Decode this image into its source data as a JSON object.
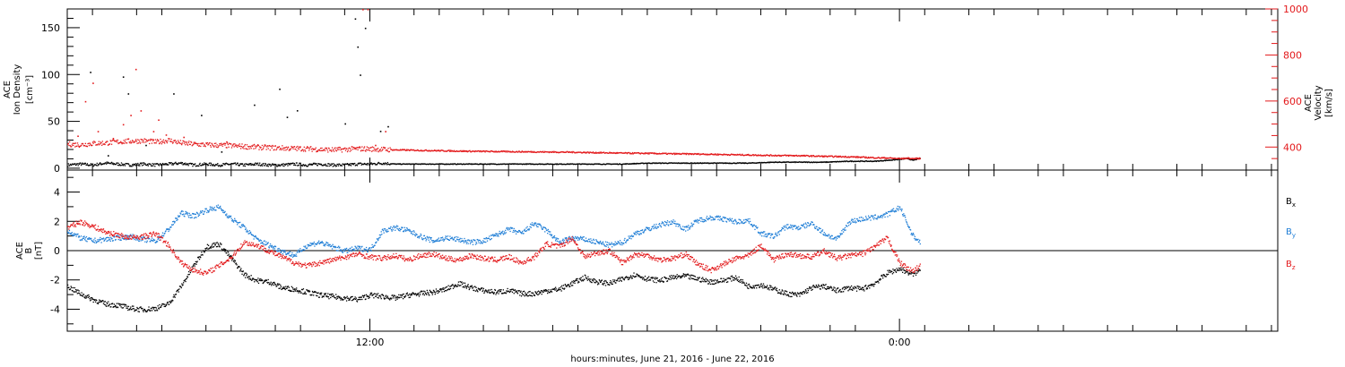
{
  "chart_data": [
    {
      "type": "scatter",
      "panel": "plasma",
      "ylabel_lines": [
        "ACE",
        "Ion Density"
      ],
      "ylabel_unit": "[cm⁻³]",
      "y2label_lines": [
        "ACE",
        "Velocity"
      ],
      "y2label_unit": "[km/s]",
      "ylim": [
        -2,
        170
      ],
      "yticks": [
        0,
        50,
        100,
        150
      ],
      "y2lim": [
        300,
        1000
      ],
      "y2ticks": [
        400,
        600,
        800,
        1000
      ],
      "x_range_hours": [
        0,
        48
      ],
      "series": [
        {
          "name": "Ion Density",
          "axis": "left",
          "color": "#000000",
          "x": [
            0.0,
            0.5,
            1.0,
            1.5,
            2.0,
            2.5,
            3.0,
            3.5,
            4.0,
            4.5,
            5.0,
            5.5,
            6.0,
            6.5,
            7.0,
            7.5,
            8.0,
            8.5,
            9.0,
            9.5,
            10.0,
            10.5,
            11.0,
            11.5,
            12.0,
            12.5,
            13.0,
            14.0,
            15.0,
            16.0,
            17.0,
            18.0,
            19.0,
            20.0,
            21.0,
            22.0,
            23.0,
            24.0,
            25.0,
            26.0,
            27.0,
            28.0,
            29.0,
            30.0,
            31.0,
            32.0,
            32.5,
            33.0,
            33.3,
            33.5,
            33.8
          ],
          "y": [
            4,
            5,
            4,
            6,
            5,
            4,
            5,
            4,
            5,
            6,
            4,
            5,
            4,
            5,
            4,
            5,
            4,
            4,
            5,
            4,
            5,
            4,
            4,
            5,
            5,
            6,
            5,
            5,
            5,
            5,
            5,
            5,
            5,
            5,
            5,
            5,
            6,
            6,
            6,
            6,
            6,
            7,
            7,
            7,
            8,
            8,
            9,
            10,
            11,
            9,
            11
          ]
        },
        {
          "name": "Ion Density spikes",
          "axis": "left",
          "color": "#000000",
          "x": [
            0.9,
            2.2,
            2.4,
            4.2,
            5.3,
            7.4,
            8.4,
            8.7,
            9.1,
            11.0,
            11.4,
            11.5,
            11.6,
            11.8,
            12.4,
            12.7,
            6.1,
            3.1,
            1.6
          ],
          "y": [
            103,
            98,
            80,
            80,
            57,
            68,
            85,
            55,
            62,
            48,
            160,
            130,
            100,
            150,
            40,
            45,
            18,
            25,
            14
          ]
        },
        {
          "name": "Velocity",
          "axis": "right",
          "color": "#e31a1c",
          "x": [
            0.0,
            0.5,
            1.0,
            1.5,
            2.0,
            2.5,
            3.0,
            3.5,
            4.0,
            4.5,
            5.0,
            5.5,
            6.0,
            6.5,
            7.0,
            7.5,
            8.0,
            8.5,
            9.0,
            9.5,
            10.0,
            10.5,
            11.0,
            11.5,
            12.0,
            12.5,
            13.0,
            14.0,
            15.0,
            16.0,
            17.0,
            18.0,
            19.0,
            20.0,
            21.0,
            22.0,
            23.0,
            24.0,
            25.0,
            26.0,
            27.0,
            28.0,
            29.0,
            30.0,
            31.0,
            32.0,
            32.5,
            33.0,
            33.3,
            33.5,
            33.8
          ],
          "y": [
            415,
            412,
            418,
            420,
            425,
            428,
            430,
            424,
            432,
            420,
            415,
            412,
            410,
            408,
            405,
            402,
            400,
            398,
            396,
            395,
            392,
            390,
            392,
            395,
            394,
            392,
            390,
            388,
            386,
            384,
            383,
            382,
            381,
            380,
            378,
            376,
            375,
            373,
            372,
            370,
            368,
            366,
            365,
            362,
            360,
            356,
            355,
            352,
            354,
            352,
            353
          ]
        },
        {
          "name": "Velocity outliers",
          "axis": "right",
          "color": "#e31a1c",
          "x": [
            0.4,
            1.2,
            1.8,
            2.2,
            2.5,
            2.9,
            3.4,
            3.9,
            1.0,
            2.7,
            11.7,
            11.9,
            12.2,
            6.3,
            4.6,
            0.7,
            3.6,
            12.6
          ],
          "y": [
            450,
            470,
            440,
            500,
            540,
            560,
            470,
            455,
            680,
            740,
            1000,
            1000,
            410,
            425,
            445,
            600,
            520,
            470
          ]
        }
      ]
    },
    {
      "type": "scatter",
      "panel": "magnetic",
      "ylabel_lines": [
        "ACE",
        "B"
      ],
      "ylabel_unit": "[nT]",
      "ylim": [
        -5.5,
        5.5
      ],
      "yticks": [
        -4,
        -2,
        0,
        2,
        4
      ],
      "x_range_hours": [
        0,
        48
      ],
      "legend_position": "right",
      "series": [
        {
          "name": "B",
          "label_sub": "x",
          "color": "#000000",
          "x": [
            0.0,
            0.5,
            1.0,
            1.5,
            2.0,
            2.5,
            3.0,
            3.5,
            4.0,
            4.5,
            5.0,
            5.5,
            6.0,
            6.5,
            7.0,
            7.5,
            8.0,
            8.5,
            9.0,
            9.5,
            10.0,
            10.5,
            11.0,
            11.5,
            12.0,
            12.5,
            13.0,
            13.5,
            14.0,
            14.5,
            15.0,
            15.5,
            16.0,
            16.5,
            17.0,
            17.5,
            18.0,
            18.5,
            19.0,
            19.5,
            20.0,
            20.5,
            21.0,
            21.5,
            22.0,
            22.5,
            23.0,
            23.5,
            24.0,
            24.5,
            25.0,
            25.5,
            26.0,
            26.5,
            27.0,
            27.5,
            28.0,
            28.5,
            29.0,
            29.5,
            30.0,
            30.5,
            31.0,
            31.5,
            32.0,
            32.5,
            33.0,
            33.5,
            33.8
          ],
          "y": [
            -2.4,
            -2.9,
            -3.3,
            -3.6,
            -3.7,
            -3.9,
            -4.0,
            -3.9,
            -3.6,
            -2.4,
            -1.0,
            0.3,
            0.5,
            -0.5,
            -1.6,
            -2.0,
            -2.1,
            -2.5,
            -2.6,
            -2.8,
            -3.0,
            -3.1,
            -3.2,
            -3.3,
            -3.0,
            -3.1,
            -3.2,
            -3.0,
            -2.9,
            -2.8,
            -2.6,
            -2.2,
            -2.5,
            -2.7,
            -2.8,
            -2.7,
            -2.9,
            -2.9,
            -2.7,
            -2.6,
            -2.2,
            -1.8,
            -2.1,
            -2.2,
            -1.9,
            -1.6,
            -1.9,
            -2.0,
            -1.8,
            -1.7,
            -1.9,
            -2.1,
            -2.0,
            -1.8,
            -2.4,
            -2.3,
            -2.6,
            -2.9,
            -3.0,
            -2.5,
            -2.4,
            -2.7,
            -2.5,
            -2.6,
            -2.2,
            -1.5,
            -1.2,
            -1.6,
            -1.3
          ]
        },
        {
          "name": "B",
          "label_sub": "y",
          "color": "#1f7ed6",
          "x": [
            0.0,
            0.5,
            1.0,
            1.5,
            2.0,
            2.5,
            3.0,
            3.5,
            4.0,
            4.5,
            5.0,
            5.5,
            6.0,
            6.5,
            7.0,
            7.5,
            8.0,
            8.5,
            9.0,
            9.5,
            10.0,
            10.5,
            11.0,
            11.5,
            12.0,
            12.5,
            13.0,
            13.5,
            14.0,
            14.5,
            15.0,
            15.5,
            16.0,
            16.5,
            17.0,
            17.5,
            18.0,
            18.5,
            19.0,
            19.5,
            20.0,
            20.5,
            21.0,
            21.5,
            22.0,
            22.5,
            23.0,
            23.5,
            24.0,
            24.5,
            25.0,
            25.5,
            26.0,
            26.5,
            27.0,
            27.5,
            28.0,
            28.5,
            29.0,
            29.5,
            30.0,
            30.5,
            31.0,
            31.5,
            32.0,
            32.5,
            33.0,
            33.5,
            33.8
          ],
          "y": [
            1.4,
            0.9,
            0.7,
            0.8,
            0.9,
            1.0,
            0.8,
            0.7,
            1.5,
            2.6,
            2.4,
            2.8,
            3.0,
            2.2,
            1.6,
            0.8,
            0.4,
            0.0,
            -0.3,
            0.4,
            0.6,
            0.3,
            0.0,
            0.2,
            0.1,
            1.4,
            1.6,
            1.4,
            1.0,
            0.7,
            0.9,
            0.8,
            0.6,
            0.7,
            1.1,
            1.5,
            1.2,
            1.9,
            1.4,
            0.6,
            0.9,
            0.8,
            0.6,
            0.4,
            0.6,
            1.2,
            1.5,
            1.8,
            2.0,
            1.5,
            2.1,
            2.3,
            2.2,
            2.0,
            2.1,
            1.2,
            1.0,
            1.7,
            1.6,
            1.9,
            1.2,
            0.8,
            2.0,
            2.2,
            2.3,
            2.5,
            3.0,
            1.1,
            0.6
          ]
        },
        {
          "name": "B",
          "label_sub": "z",
          "color": "#e31a1c",
          "x": [
            0.0,
            0.5,
            1.0,
            1.5,
            2.0,
            2.5,
            3.0,
            3.5,
            4.0,
            4.5,
            5.0,
            5.5,
            6.0,
            6.5,
            7.0,
            7.5,
            8.0,
            8.5,
            9.0,
            9.5,
            10.0,
            10.5,
            11.0,
            11.5,
            12.0,
            12.5,
            13.0,
            13.5,
            14.0,
            14.5,
            15.0,
            15.5,
            16.0,
            16.5,
            17.0,
            17.5,
            18.0,
            18.5,
            19.0,
            19.5,
            20.0,
            20.5,
            21.0,
            21.5,
            22.0,
            22.5,
            23.0,
            23.5,
            24.0,
            24.5,
            25.0,
            25.5,
            26.0,
            26.5,
            27.0,
            27.5,
            28.0,
            28.5,
            29.0,
            29.5,
            30.0,
            30.5,
            31.0,
            31.5,
            32.0,
            32.5,
            33.0,
            33.5,
            33.8
          ],
          "y": [
            1.6,
            2.0,
            1.7,
            1.3,
            1.1,
            0.9,
            1.0,
            1.2,
            0.4,
            -0.8,
            -1.3,
            -1.5,
            -1.0,
            -0.4,
            0.6,
            0.4,
            0.0,
            -0.4,
            -0.8,
            -1.0,
            -0.8,
            -0.6,
            -0.4,
            -0.2,
            -0.4,
            -0.5,
            -0.3,
            -0.6,
            -0.3,
            -0.2,
            -0.5,
            -0.6,
            -0.3,
            -0.5,
            -0.6,
            -0.4,
            -0.8,
            -0.4,
            0.5,
            0.3,
            0.9,
            -0.4,
            -0.1,
            0.0,
            -0.8,
            -0.2,
            -0.3,
            -0.6,
            -0.5,
            -0.2,
            -0.9,
            -1.3,
            -0.9,
            -0.5,
            -0.3,
            0.4,
            -0.6,
            -0.2,
            -0.3,
            -0.4,
            0.0,
            -0.5,
            -0.3,
            -0.2,
            0.3,
            0.9,
            -0.8,
            -1.4,
            -1.0
          ]
        }
      ]
    }
  ],
  "xaxis": {
    "tick_labels": [
      {
        "hour": 12,
        "label": "12:00"
      },
      {
        "hour": 33,
        "label": "0:00"
      }
    ],
    "minor_tick_spacing_hours": 2.75,
    "caption": "hours:minutes, June 21, 2016 - June 22, 2016"
  },
  "colors": {
    "black": "#000000",
    "red": "#e31a1c",
    "blue": "#1f7ed6"
  }
}
